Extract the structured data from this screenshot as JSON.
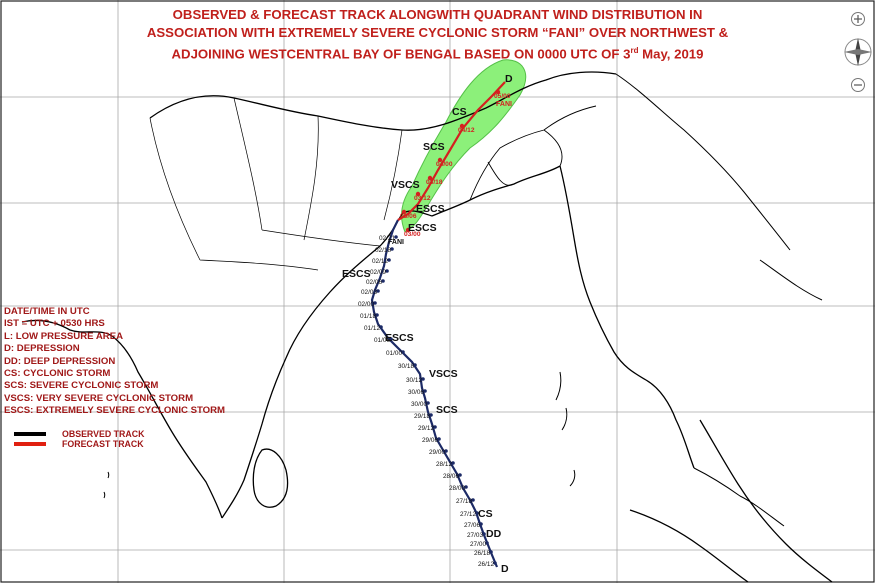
{
  "title": {
    "line1": "OBSERVED & FORECAST TRACK ALONGWITH QUADRANT WIND DISTRIBUTION IN",
    "line2": "ASSOCIATION WITH EXTREMELY SEVERE CYCLONIC STORM “FANI” OVER NORTHWEST &",
    "line3a": "ADJOINING WESTCENTRAL BAY OF BENGAL BASED ON 0000 UTC OF 3",
    "line3sup": "rd",
    "line3b": " May, 2019"
  },
  "legend": {
    "lines": [
      "DATE/TIME IN UTC",
      "IST = UTC + 0530 HRS",
      "L: LOW PRESSURE AREA",
      "D: DEPRESSION",
      "DD: DEEP DEPRESSION",
      "CS: CYCLONIC STORM",
      "SCS: SEVERE CYCLONIC STORM",
      "VSCS: VERY SEVERE CYCLONIC STORM",
      "ESCS: EXTREMELY SEVERE CYCLONIC STORM"
    ],
    "observed_label": "OBSERVED TRACK",
    "forecast_label": "FORECAST TRACK",
    "observed_color": "#000000",
    "forecast_color": "#e02010"
  },
  "colors": {
    "cone_fill": "#8cf07a",
    "coast": "#000000",
    "grid": "#a8a8a8",
    "observed_track": "#1c2a66",
    "forecast_track": "#d42020"
  },
  "observed_track": {
    "time_labels": [
      "26/12",
      "26/18",
      "27/00",
      "27/03",
      "27/06",
      "27/12",
      "27/18",
      "28/00",
      "28/06",
      "28/12",
      "29/00",
      "29/06",
      "29/12",
      "29/18",
      "30/00",
      "30/06",
      "30/12",
      "30/18",
      "01/00",
      "01/06",
      "01/12",
      "01/18",
      "02/00",
      "02/03",
      "02/06",
      "02/09",
      "02/12",
      "02/18",
      "02/21"
    ],
    "intensity_labels": [
      "D",
      "DD",
      "CS",
      "SCS",
      "VSCS",
      "ESCS",
      "ESCS"
    ]
  },
  "forecast_track": {
    "time_labels": [
      "03/00",
      "03/06",
      "03/12",
      "03/18",
      "04/00",
      "04/12",
      "05/00"
    ],
    "intensity_labels": [
      "ESCS",
      "ESCS",
      "VSCS",
      "SCS",
      "CS",
      "D"
    ],
    "storm_name": "FANI",
    "storm_name_top": "FANI"
  },
  "map_icons": [
    "compass-rose-icon",
    "zoom-in-icon",
    "zoom-out-icon"
  ]
}
